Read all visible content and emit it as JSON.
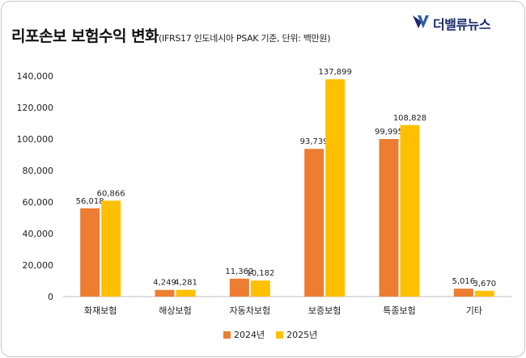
{
  "header": {
    "title": "리포손보 보험수익 변화",
    "subtitle": "(IFRS17 인도네시아 PSAK 기준, 단위: 백만원)"
  },
  "brand": {
    "name": "더밸류뉴스",
    "logo_icon": "tvn-logo-icon",
    "color": "#1a2b6d"
  },
  "chart_data": {
    "type": "bar",
    "categories": [
      "화재보험",
      "해상보험",
      "자동차보험",
      "보증보험",
      "특종보험",
      "기타"
    ],
    "series": [
      {
        "name": "2024년",
        "color": "#ed7d31",
        "values": [
          56018,
          4249,
          11362,
          93739,
          99995,
          5016
        ]
      },
      {
        "name": "2025년",
        "color": "#ffc000",
        "values": [
          60866,
          4281,
          10182,
          137899,
          108828,
          3670
        ]
      }
    ],
    "value_labels": [
      [
        "56,018",
        "4,249",
        "11,362",
        "93,739",
        "99,995",
        "5,016"
      ],
      [
        "60,866",
        "4,281",
        "10,182",
        "137,899",
        "108,828",
        "3,670"
      ]
    ],
    "y_ticks": [
      "0",
      "20,000",
      "40,000",
      "60,000",
      "80,000",
      "100,000",
      "120,000",
      "140,000"
    ],
    "ylim": [
      0,
      140000
    ],
    "ystep": 20000,
    "grid": false,
    "legend_position": "bottom-center"
  }
}
